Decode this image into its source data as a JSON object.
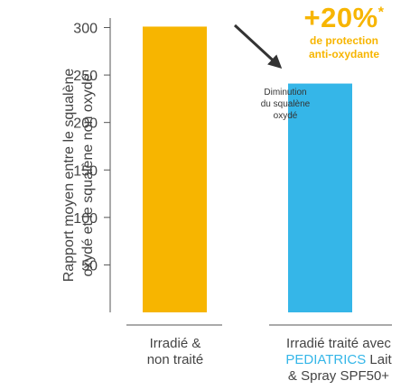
{
  "chart_data": {
    "type": "bar",
    "categories": [
      "Irradié & non traité",
      "Irradié traité avec PEDIATRICS Lait & Spray SPF50+"
    ],
    "values": [
      301,
      241
    ],
    "ylabel_line1": "Rapport moyen entre le squalène",
    "ylabel_line2": "oxydé et le squalène non oxydé",
    "ylim": [
      0,
      310
    ],
    "yticks": [
      50,
      100,
      150,
      200,
      250,
      300
    ],
    "grid": false,
    "bar_colors": [
      "#f7b500",
      "#35b6e8"
    ],
    "category_labels": [
      {
        "line1": "Irradié &",
        "line2": "non traité"
      },
      {
        "line1": "Irradié traité avec",
        "brand": "PEDIATRICS",
        "line2_rest": " Lait",
        "line3": "& Spray SPF50+"
      }
    ],
    "annotation": {
      "line1": "Diminution",
      "line2": "du squalène",
      "line3": "oxydé"
    },
    "highlight": {
      "value": "+20%",
      "star": "*",
      "line1": "de protection",
      "line2": "anti-oxydante"
    }
  }
}
